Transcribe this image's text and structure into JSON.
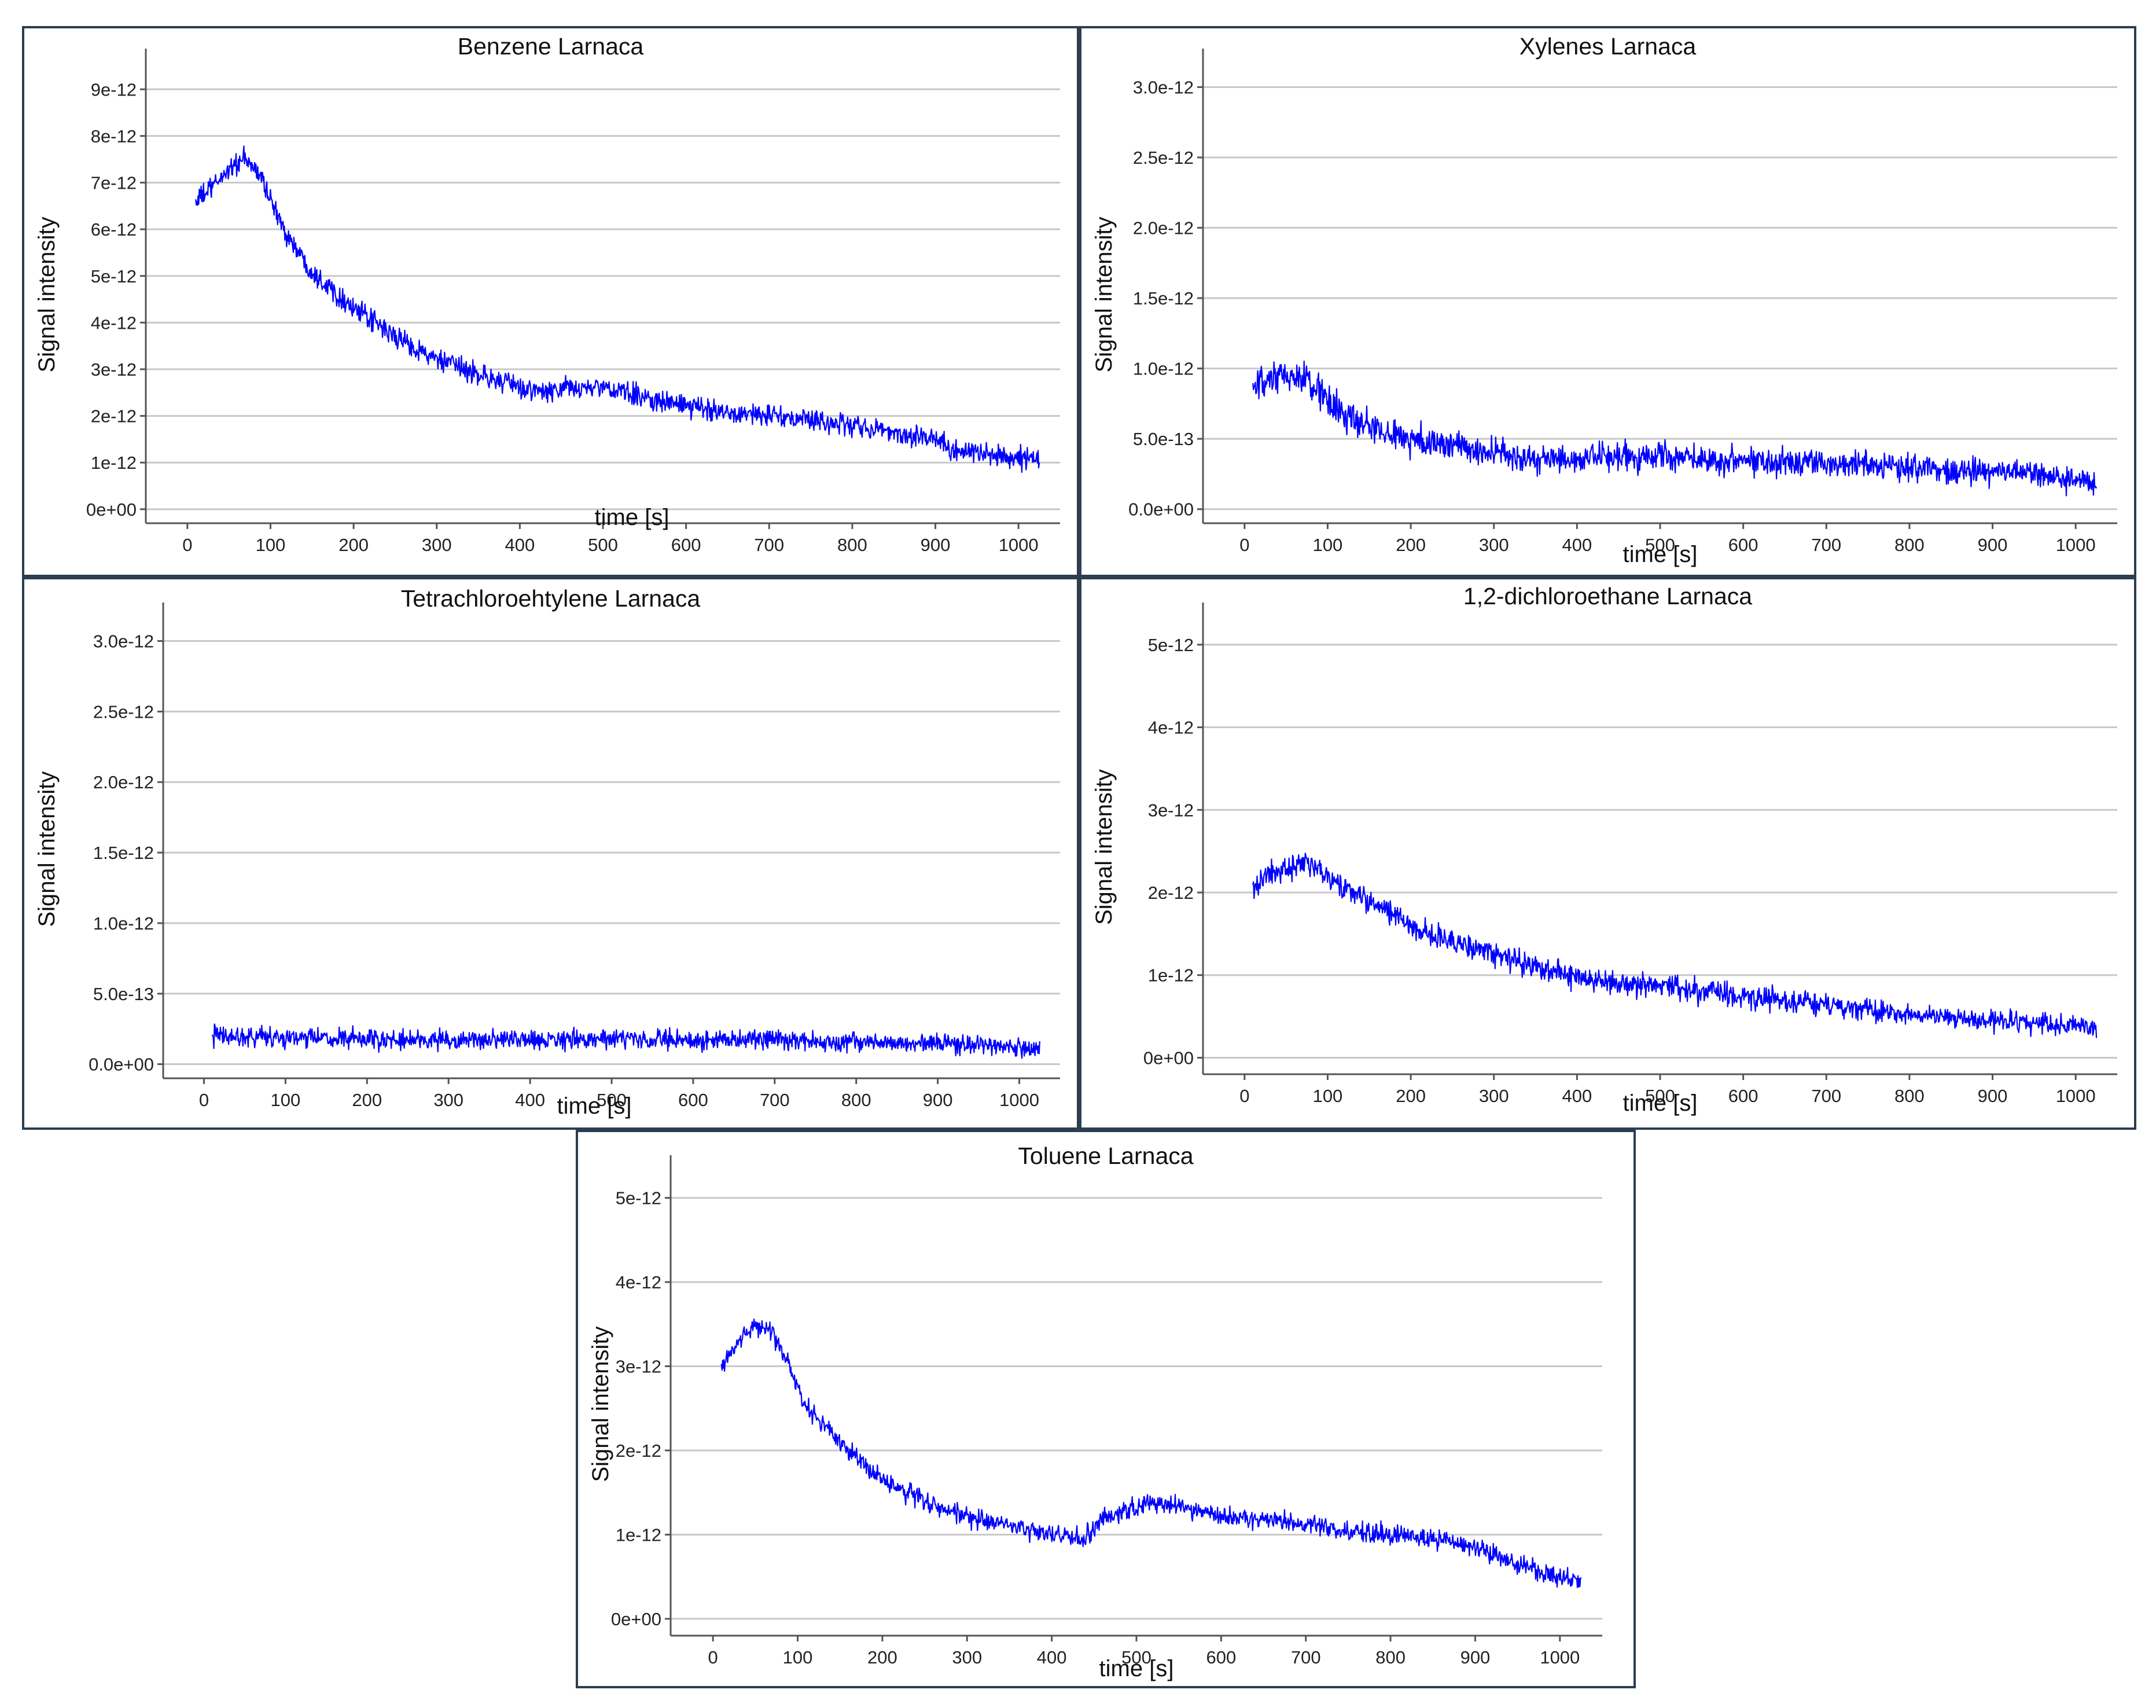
{
  "chart_data": [
    {
      "type": "line",
      "title": "Benzene Larnaca",
      "xlabel": "time [s]",
      "ylabel": "Signal intensity",
      "xlim": [
        -50,
        1050
      ],
      "ylim": [
        -3e-13,
        9.5e-12
      ],
      "xticks": [
        0,
        100,
        200,
        300,
        400,
        500,
        600,
        700,
        800,
        900,
        1000
      ],
      "yticks": [
        0,
        1e-12,
        2e-12,
        3e-12,
        4e-12,
        5e-12,
        6e-12,
        7e-12,
        8e-12,
        9e-12
      ],
      "ytick_labels": [
        "0e+00",
        "1e-12",
        "2e-12",
        "3e-12",
        "4e-12",
        "5e-12",
        "6e-12",
        "7e-12",
        "8e-12",
        "9e-12"
      ],
      "grid": true,
      "color": "#0000ff",
      "noise": 3.5e-13,
      "series": [
        {
          "x": [
            10,
            30,
            50,
            70,
            90,
            110,
            130,
            150,
            175,
            200,
            250,
            300,
            350,
            400,
            430,
            460,
            500,
            550,
            600,
            650,
            700,
            750,
            800,
            850,
            900,
            920,
            950,
            1000,
            1025
          ],
          "values": [
            6.6e-12,
            6.9e-12,
            7.3e-12,
            7.5e-12,
            7.1e-12,
            6.2e-12,
            5.6e-12,
            5.1e-12,
            4.7e-12,
            4.3e-12,
            3.7e-12,
            3.2e-12,
            2.9e-12,
            2.6e-12,
            2.5e-12,
            2.6e-12,
            2.6e-12,
            2.4e-12,
            2.2e-12,
            2.1e-12,
            2e-12,
            1.9e-12,
            1.8e-12,
            1.65e-12,
            1.5e-12,
            1.3e-12,
            1.2e-12,
            1.1e-12,
            1.05e-12
          ]
        }
      ]
    },
    {
      "type": "line",
      "title": "Xylenes Larnaca",
      "xlabel": "time [s]",
      "ylabel": "Signal intensity",
      "xlim": [
        -50,
        1050
      ],
      "ylim": [
        -1e-13,
        3.15e-12
      ],
      "xticks": [
        0,
        100,
        200,
        300,
        400,
        500,
        600,
        700,
        800,
        900,
        1000
      ],
      "yticks": [
        0,
        5e-13,
        1e-12,
        1.5e-12,
        2e-12,
        2.5e-12,
        3e-12
      ],
      "ytick_labels": [
        "0.0e+00",
        "5.0e-13",
        "1.0e-12",
        "1.5e-12",
        "2.0e-12",
        "2.5e-12",
        "3.0e-12"
      ],
      "grid": true,
      "color": "#0000ff",
      "noise": 1.8e-13,
      "series": [
        {
          "x": [
            10,
            30,
            50,
            70,
            90,
            110,
            150,
            200,
            250,
            300,
            350,
            400,
            450,
            500,
            550,
            600,
            650,
            700,
            750,
            800,
            850,
            900,
            950,
            1000,
            1025
          ],
          "values": [
            8.5e-13,
            9e-13,
            9.5e-13,
            9.2e-13,
            8.5e-13,
            7e-13,
            5.8e-13,
            5e-13,
            4.5e-13,
            4e-13,
            3.5e-13,
            3.5e-13,
            3.7e-13,
            3.8e-13,
            3.6e-13,
            3.5e-13,
            3.4e-13,
            3.3e-13,
            3.2e-13,
            3e-13,
            2.8e-13,
            2.7e-13,
            2.5e-13,
            2e-13,
            1.8e-13
          ]
        }
      ]
    },
    {
      "type": "line",
      "title": "Tetrachloroehtylene Larnaca",
      "xlabel": "time [s]",
      "ylabel": "Signal intensity",
      "xlim": [
        -50,
        1050
      ],
      "ylim": [
        -1e-13,
        3.15e-12
      ],
      "xticks": [
        0,
        100,
        200,
        300,
        400,
        500,
        600,
        700,
        800,
        900,
        1000
      ],
      "yticks": [
        0,
        5e-13,
        1e-12,
        1.5e-12,
        2e-12,
        2.5e-12,
        3e-12
      ],
      "ytick_labels": [
        "0.0e+00",
        "5.0e-13",
        "1.0e-12",
        "1.5e-12",
        "2.0e-12",
        "2.5e-12",
        "3.0e-12"
      ],
      "grid": true,
      "color": "#0000ff",
      "noise": 1.4e-13,
      "series": [
        {
          "x": [
            10,
            50,
            100,
            200,
            300,
            400,
            500,
            600,
            700,
            800,
            900,
            1000,
            1025
          ],
          "values": [
            2e-13,
            2e-13,
            1.9e-13,
            1.7e-13,
            1.7e-13,
            1.7e-13,
            1.8e-13,
            1.7e-13,
            1.7e-13,
            1.6e-13,
            1.5e-13,
            1.2e-13,
            1.1e-13
          ]
        }
      ]
    },
    {
      "type": "line",
      "title": "1,2-dichloroethane Larnaca",
      "xlabel": "time [s]",
      "ylabel": "Signal intensity",
      "xlim": [
        -50,
        1050
      ],
      "ylim": [
        -2e-13,
        5.3e-12
      ],
      "xticks": [
        0,
        100,
        200,
        300,
        400,
        500,
        600,
        700,
        800,
        900,
        1000
      ],
      "yticks": [
        0,
        1e-12,
        2e-12,
        3e-12,
        4e-12,
        5e-12
      ],
      "ytick_labels": [
        "0e+00",
        "1e-12",
        "2e-12",
        "3e-12",
        "4e-12",
        "5e-12"
      ],
      "grid": true,
      "color": "#0000ff",
      "noise": 2.2e-13,
      "series": [
        {
          "x": [
            10,
            30,
            50,
            70,
            90,
            110,
            150,
            200,
            250,
            300,
            350,
            400,
            450,
            500,
            550,
            600,
            650,
            700,
            750,
            800,
            850,
            900,
            950,
            1000,
            1025
          ],
          "values": [
            2.1e-12,
            2.2e-12,
            2.3e-12,
            2.35e-12,
            2.25e-12,
            2.1e-12,
            1.9e-12,
            1.6e-12,
            1.4e-12,
            1.25e-12,
            1.1e-12,
            9.8e-13,
            9e-13,
            8.5e-13,
            8e-13,
            7.5e-13,
            7e-13,
            6.5e-13,
            5.8e-13,
            5.2e-13,
            4.8e-13,
            4.5e-13,
            4.2e-13,
            3.8e-13,
            3.5e-13
          ]
        }
      ]
    },
    {
      "type": "line",
      "title": "Toluene Larnaca",
      "xlabel": "time [s]",
      "ylabel": "Signal intensity",
      "xlim": [
        -50,
        1050
      ],
      "ylim": [
        -2e-13,
        5.3e-12
      ],
      "xticks": [
        0,
        100,
        200,
        300,
        400,
        500,
        600,
        700,
        800,
        900,
        1000
      ],
      "yticks": [
        0,
        1e-12,
        2e-12,
        3e-12,
        4e-12,
        5e-12
      ],
      "ytick_labels": [
        "0e+00",
        "1e-12",
        "2e-12",
        "3e-12",
        "4e-12",
        "5e-12"
      ],
      "grid": true,
      "color": "#0000ff",
      "noise": 1.8e-13,
      "series": [
        {
          "x": [
            10,
            30,
            50,
            70,
            90,
            110,
            150,
            200,
            250,
            300,
            350,
            400,
            440,
            460,
            500,
            550,
            600,
            650,
            700,
            750,
            800,
            850,
            900,
            950,
            1000,
            1025
          ],
          "values": [
            3e-12,
            3.3e-12,
            3.5e-12,
            3.4e-12,
            3e-12,
            2.5e-12,
            2.1e-12,
            1.65e-12,
            1.4e-12,
            1.2e-12,
            1.1e-12,
            1e-12,
            9.5e-13,
            1.2e-12,
            1.35e-12,
            1.35e-12,
            1.22e-12,
            1.18e-12,
            1.12e-12,
            1.05e-12,
            1e-12,
            9.5e-13,
            8.5e-13,
            6.5e-13,
            5e-13,
            4.5e-13
          ]
        }
      ]
    }
  ]
}
